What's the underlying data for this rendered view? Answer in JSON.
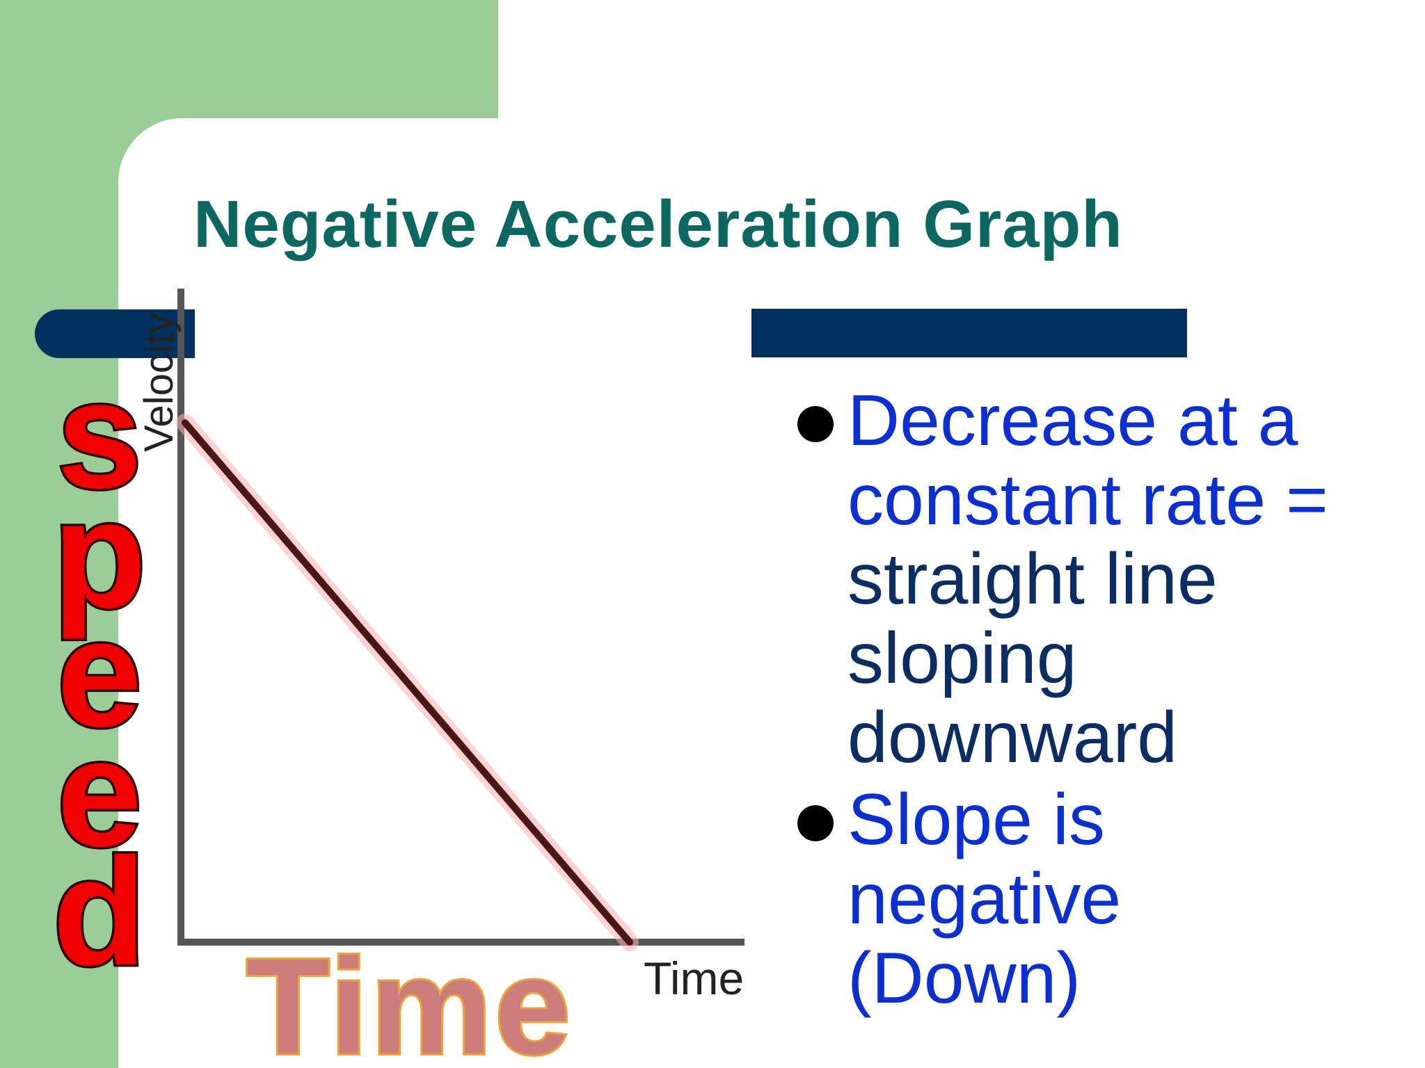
{
  "slide": {
    "title": "Negative Acceleration Graph",
    "colors": {
      "background": "#ffffff",
      "side_green": "#9bcd98",
      "accent_navy": "#03315f",
      "title_teal": "#0b675f",
      "bullet_blue": "#0b2fd0",
      "bullet_navy": "#0b2d63",
      "speed_red": "#f00000",
      "time_pink": "#cc7c7a"
    }
  },
  "graph": {
    "y_axis_label": "Velocity",
    "x_axis_label": "Time",
    "line": "straight line from high velocity down to zero",
    "overlay_vertical_word": "speed",
    "overlay_horizontal_word": "Time"
  },
  "bullets": [
    {
      "lines": [
        {
          "text": "Decrease at a",
          "color": "blue"
        },
        {
          "text": "constant rate =",
          "color": "blue"
        },
        {
          "text": "straight line",
          "color": "navy"
        },
        {
          "text": "sloping",
          "color": "navy"
        },
        {
          "text": "downward",
          "color": "navy"
        }
      ]
    },
    {
      "lines": [
        {
          "text": "Slope is",
          "color": "blue"
        },
        {
          "text": "negative",
          "color": "blue"
        },
        {
          "text": "(Down)",
          "color": "blue"
        }
      ]
    }
  ]
}
